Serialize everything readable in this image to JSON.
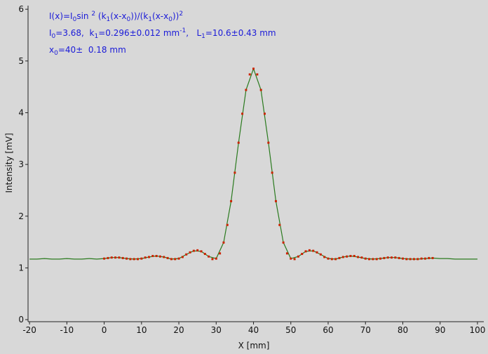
{
  "chart_data": {
    "type": "line",
    "annotations": [
      [
        "I(x)=I",
        "0",
        "sin ",
        "2",
        " (k",
        "1",
        "(x-x",
        "0",
        "))/(k",
        "1",
        "(x-x",
        "0",
        "))",
        "2"
      ],
      [
        "I",
        "0",
        "=3.68,  k",
        "1",
        "=0.296±0.012 mm",
        "-1",
        ",   L",
        "1",
        "=10.6±0.43 mm"
      ],
      [
        "x",
        "0",
        "=40±  0.18 mm"
      ]
    ],
    "x_label": "X [mm]",
    "y_label": "Intensity [mV]",
    "xlim": [
      -20.4,
      101.7
    ],
    "xticks": [
      -20,
      -10,
      0,
      10,
      20,
      30,
      40,
      50,
      60,
      70,
      80,
      90,
      100
    ],
    "ylim": [
      -0.04,
      6.07
    ],
    "yticks": [
      0,
      1,
      2,
      3,
      4,
      5,
      6
    ],
    "grid": false,
    "series": [
      {
        "type": "line",
        "color": "#2a7a1e",
        "x": [
          -20,
          -18,
          -16,
          -14,
          -12,
          -10,
          -8,
          -6,
          -4,
          -2,
          0,
          2,
          4,
          6,
          8,
          10,
          12,
          14,
          16,
          18,
          20,
          22,
          24,
          26,
          28,
          30,
          32,
          34,
          36,
          38,
          40,
          42,
          44,
          46,
          48,
          50,
          52,
          54,
          56,
          58,
          60,
          62,
          64,
          66,
          68,
          70,
          72,
          74,
          76,
          78,
          80,
          82,
          84,
          86,
          88,
          90,
          92,
          94,
          96,
          98,
          100
        ],
        "values": [
          1.17,
          1.17,
          1.18,
          1.17,
          1.17,
          1.18,
          1.17,
          1.17,
          1.18,
          1.17,
          1.18,
          1.2,
          1.2,
          1.18,
          1.17,
          1.18,
          1.21,
          1.23,
          1.21,
          1.17,
          1.18,
          1.26,
          1.33,
          1.32,
          1.22,
          1.18,
          1.49,
          2.29,
          3.42,
          4.44,
          4.85,
          4.44,
          3.42,
          2.29,
          1.49,
          1.18,
          1.22,
          1.32,
          1.33,
          1.26,
          1.18,
          1.17,
          1.21,
          1.23,
          1.21,
          1.18,
          1.17,
          1.18,
          1.2,
          1.2,
          1.18,
          1.17,
          1.17,
          1.18,
          1.19,
          1.18,
          1.18,
          1.17,
          1.17,
          1.17,
          1.17
        ]
      },
      {
        "type": "scatter",
        "color": "#cc2200",
        "x": [
          0,
          1,
          2,
          3,
          4,
          5,
          6,
          7,
          8,
          9,
          10,
          11,
          12,
          13,
          14,
          15,
          16,
          17,
          18,
          19,
          20,
          21,
          22,
          23,
          24,
          25,
          26,
          27,
          28,
          29,
          30,
          31,
          32,
          33,
          34,
          35,
          36,
          37,
          38,
          39,
          40,
          41,
          42,
          43,
          44,
          45,
          46,
          47,
          48,
          49,
          50,
          51,
          52,
          53,
          54,
          55,
          56,
          57,
          58,
          59,
          60,
          61,
          62,
          63,
          64,
          65,
          66,
          67,
          68,
          69,
          70,
          71,
          72,
          73,
          74,
          75,
          76,
          77,
          78,
          79,
          80,
          81,
          82,
          83,
          84,
          85,
          86,
          87,
          88
        ],
        "values": [
          1.18,
          1.19,
          1.2,
          1.2,
          1.2,
          1.19,
          1.18,
          1.17,
          1.17,
          1.17,
          1.18,
          1.2,
          1.21,
          1.23,
          1.23,
          1.22,
          1.21,
          1.19,
          1.17,
          1.17,
          1.18,
          1.21,
          1.26,
          1.3,
          1.33,
          1.34,
          1.32,
          1.27,
          1.22,
          1.17,
          1.18,
          1.28,
          1.49,
          1.83,
          2.29,
          2.84,
          3.42,
          3.98,
          4.44,
          4.74,
          4.85,
          4.74,
          4.44,
          3.98,
          3.42,
          2.84,
          2.29,
          1.83,
          1.49,
          1.28,
          1.18,
          1.17,
          1.22,
          1.27,
          1.32,
          1.34,
          1.33,
          1.3,
          1.26,
          1.21,
          1.18,
          1.17,
          1.17,
          1.19,
          1.21,
          1.22,
          1.23,
          1.23,
          1.21,
          1.2,
          1.18,
          1.17,
          1.17,
          1.17,
          1.18,
          1.19,
          1.2,
          1.2,
          1.2,
          1.19,
          1.18,
          1.17,
          1.17,
          1.17,
          1.17,
          1.18,
          1.18,
          1.19,
          1.19
        ]
      }
    ]
  }
}
